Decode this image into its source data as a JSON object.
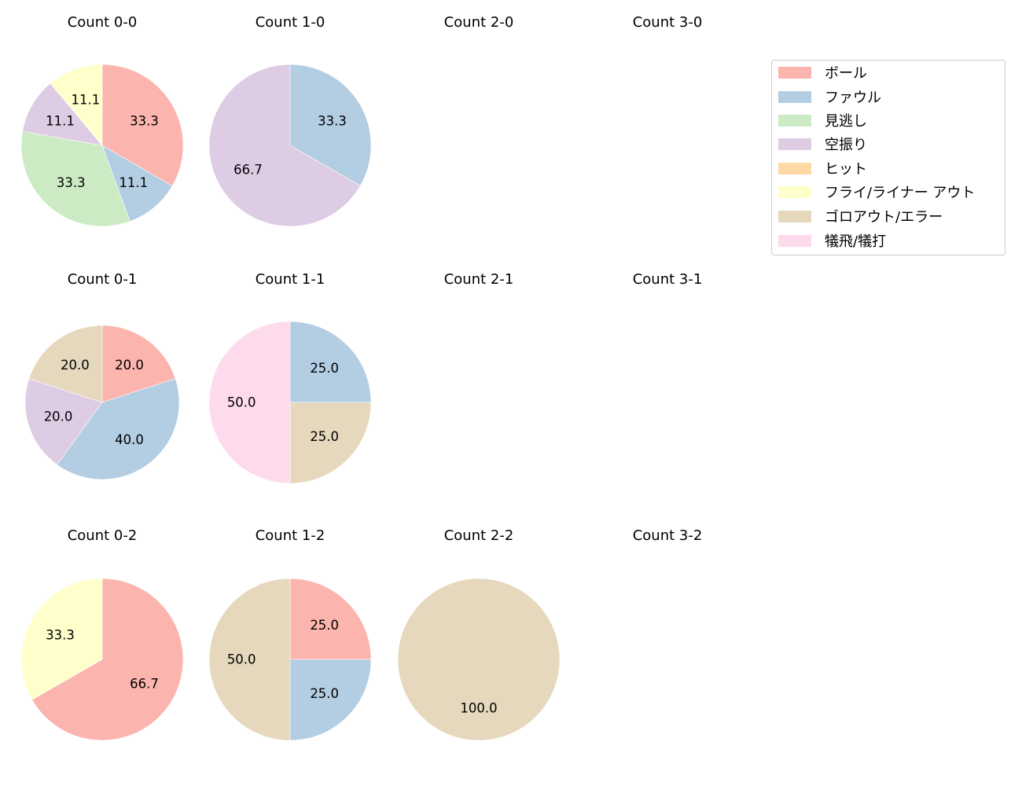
{
  "chart_data": {
    "type": "pie",
    "layout": {
      "rows": 3,
      "cols": 4,
      "legend_position": "upper right"
    },
    "categories": [
      "ボール",
      "ファウル",
      "見逃し",
      "空振り",
      "ヒット",
      "フライ/ライナー アウト",
      "ゴロアウト/エラー",
      "犠飛/犠打"
    ],
    "colors": [
      "#fbb4ae",
      "#b3cde3",
      "#ccebc5",
      "#decbe4",
      "#fed9a6",
      "#ffffcc",
      "#e5d8bd",
      "#fddaec"
    ],
    "charts": [
      {
        "title": "Count 0-0",
        "row": 0,
        "col": 0,
        "radius": 103,
        "values": [
          33.3,
          11.1,
          33.3,
          11.1,
          0,
          11.1,
          0,
          0
        ]
      },
      {
        "title": "Count 1-0",
        "row": 0,
        "col": 1,
        "radius": 103,
        "values": [
          0,
          33.3,
          0,
          66.7,
          0,
          0,
          0,
          0
        ]
      },
      {
        "title": "Count 2-0",
        "row": 0,
        "col": 2,
        "values": []
      },
      {
        "title": "Count 3-0",
        "row": 0,
        "col": 3,
        "values": []
      },
      {
        "title": "Count 0-1",
        "row": 1,
        "col": 0,
        "radius": 98,
        "values": [
          20.0,
          40.0,
          0,
          20.0,
          0,
          0,
          20.0,
          0
        ]
      },
      {
        "title": "Count 1-1",
        "row": 1,
        "col": 1,
        "radius": 103,
        "values": [
          0,
          25.0,
          0,
          0,
          0,
          0,
          25.0,
          50.0
        ]
      },
      {
        "title": "Count 2-1",
        "row": 1,
        "col": 2,
        "values": []
      },
      {
        "title": "Count 3-1",
        "row": 1,
        "col": 3,
        "values": []
      },
      {
        "title": "Count 0-2",
        "row": 2,
        "col": 0,
        "radius": 103,
        "values": [
          66.7,
          0,
          0,
          0,
          0,
          33.3,
          0,
          0
        ]
      },
      {
        "title": "Count 1-2",
        "row": 2,
        "col": 1,
        "radius": 103,
        "values": [
          25.0,
          25.0,
          0,
          0,
          0,
          0,
          50.0,
          0
        ]
      },
      {
        "title": "Count 2-2",
        "row": 2,
        "col": 2,
        "radius": 103,
        "values": [
          0,
          0,
          0,
          0,
          0,
          0,
          100.0,
          0
        ]
      },
      {
        "title": "Count 3-2",
        "row": 2,
        "col": 3,
        "values": []
      }
    ],
    "start_angle": 90,
    "direction": "clockwise",
    "label_format": "%.1f"
  },
  "legend": {
    "items": [
      {
        "label": "ボール",
        "color": "#fbb4ae"
      },
      {
        "label": "ファウル",
        "color": "#b3cde3"
      },
      {
        "label": "見逃し",
        "color": "#ccebc5"
      },
      {
        "label": "空振り",
        "color": "#decbe4"
      },
      {
        "label": "ヒット",
        "color": "#fed9a6"
      },
      {
        "label": "フライ/ライナー アウト",
        "color": "#ffffcc"
      },
      {
        "label": "ゴロアウト/エラー",
        "color": "#e5d8bd"
      },
      {
        "label": "犠飛/犠打",
        "color": "#fddaec"
      }
    ]
  }
}
